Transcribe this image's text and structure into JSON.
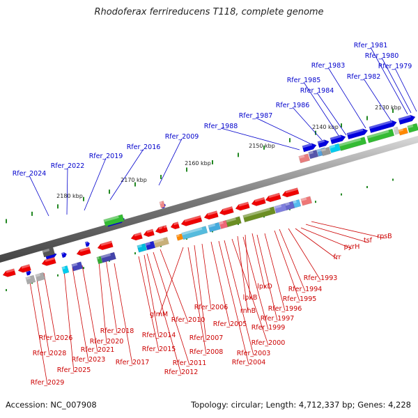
{
  "title": "Rhodoferax ferrireducens T118, complete genome",
  "footer": {
    "accession": "Accession: NC_007908",
    "topology": "Topology: circular; Length: 4,712,337 bp; Genes: 4,228"
  },
  "ticks": [
    "2130 kbp",
    "2140 kbp",
    "2150 kbp",
    "2160 kbp",
    "2170 kbp",
    "2180 kbp"
  ],
  "blue_labels": [
    "Rfer_1981",
    "Rfer_1980",
    "Rfer_1979",
    "Rfer_1983",
    "Rfer_1982",
    "Rfer_1985",
    "Rfer_1984",
    "Rfer_1986",
    "Rfer_1987",
    "Rfer_1988",
    "Rfer_2009",
    "Rfer_2016",
    "Rfer_2019",
    "Rfer_2022",
    "Rfer_2024"
  ],
  "red_labels": [
    "rpsB",
    "tsf",
    "pyrH",
    "frr",
    "Rfer_1993",
    "Rfer_1994",
    "Rfer_1995",
    "Rfer_1996",
    "Rfer_1997",
    "Rfer_1999",
    "Rfer_2000",
    "lpxD",
    "lpxB",
    "rnhB",
    "Rfer_2003",
    "Rfer_2004",
    "Rfer_2005",
    "Rfer_2006",
    "Rfer_2007",
    "Rfer_2008",
    "glmM",
    "Rfer_2010",
    "Rfer_2011",
    "Rfer_2012",
    "Rfer_2014",
    "Rfer_2015",
    "Rfer_2017",
    "Rfer_2018",
    "Rfer_2020",
    "Rfer_2021",
    "Rfer_2023",
    "Rfer_2025",
    "Rfer_2026",
    "Rfer_2028",
    "Rfer_2029"
  ],
  "colors": {
    "forward_label": "#0000cc",
    "reverse_label": "#cc0000",
    "tick": "#228822",
    "backbone": "#888888"
  }
}
